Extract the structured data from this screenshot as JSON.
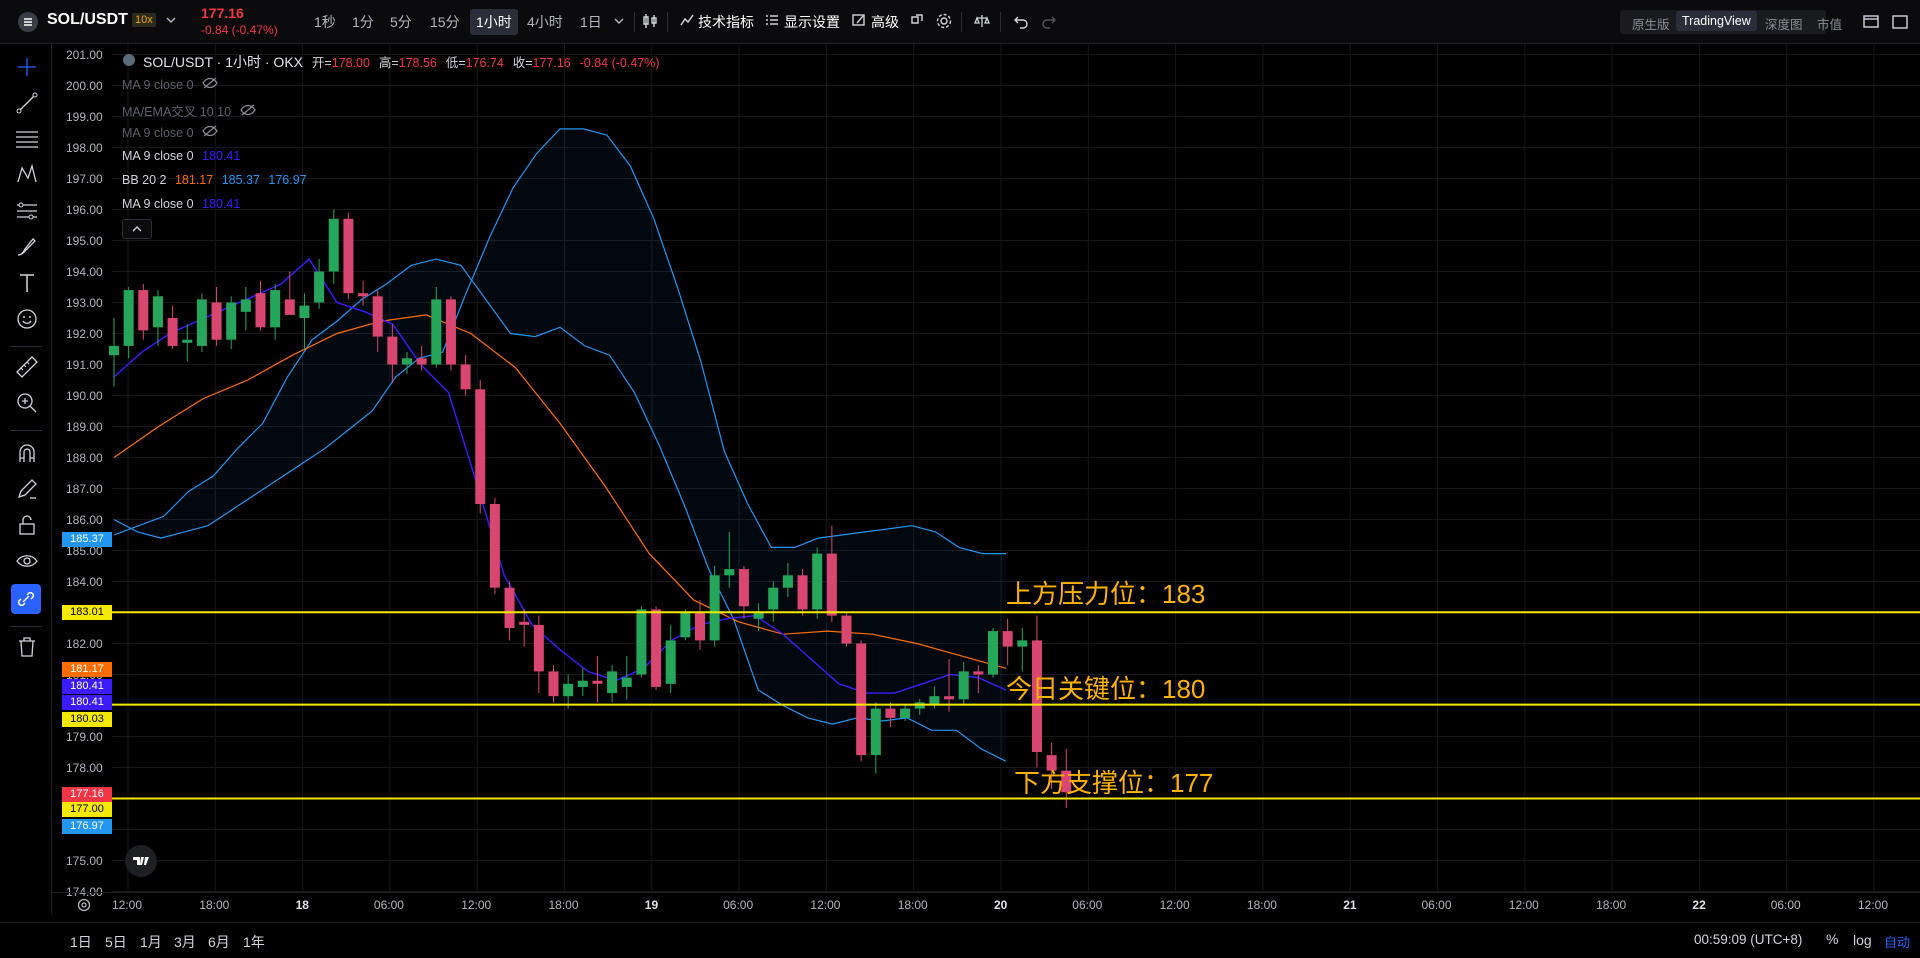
{
  "header": {
    "symbol": "SOL/USDT",
    "leverage": "10x",
    "last_price": "177.16",
    "change": "-0.84 (-0.47%)",
    "intervals": [
      "1秒",
      "1分",
      "5分",
      "15分",
      "1小时",
      "4小时",
      "1日"
    ],
    "active_interval": "1小时",
    "indicators_label": "技术指标",
    "display_label": "显示设置",
    "advanced_label": "高级",
    "view_modes": [
      "原生版",
      "TradingView",
      "深度图",
      "市值"
    ],
    "active_view": "TradingView"
  },
  "legend": {
    "title": "SOL/USDT · 1小时 · OKX",
    "open_label": "开=",
    "open": "178.00",
    "high_label": "高=",
    "high": "178.56",
    "low_label": "低=",
    "low": "176.74",
    "close_label": "收=",
    "close": "177.16",
    "change": "-0.84 (-0.47%)",
    "indicators": [
      {
        "name": "MA 9 close 0",
        "value": "",
        "hidden": true
      },
      {
        "name": "MA/EMA交叉 10 10",
        "value": "",
        "hidden": true
      },
      {
        "name": "MA 9 close 0",
        "value": "",
        "hidden": true
      },
      {
        "name": "MA 9 close 0",
        "value": "180.41",
        "hidden": false
      },
      {
        "name": "BB 20 2",
        "values": [
          "181.17",
          "185.37",
          "176.97"
        ],
        "hidden": false
      },
      {
        "name": "MA 9 close 0",
        "value": "180.41",
        "hidden": false
      }
    ]
  },
  "price_axis": {
    "labels": [
      "201.00",
      "200.00",
      "199.00",
      "198.00",
      "197.00",
      "196.00",
      "195.00",
      "194.00",
      "193.00",
      "192.00",
      "191.00",
      "190.00",
      "189.00",
      "188.00",
      "187.00",
      "186.00",
      "185.00",
      "184.00",
      "183.00",
      "182.00",
      "181.00",
      "180.00",
      "179.00",
      "178.00",
      "177.00",
      "176.00",
      "175.00",
      "174.00"
    ],
    "tags": [
      {
        "text": "185.37",
        "price": 185.37,
        "color": "#2196f3"
      },
      {
        "text": "183.01",
        "price": 183.01,
        "color": "#f5e900"
      },
      {
        "text": "181.17",
        "price": 181.17,
        "color": "#ff6d00"
      },
      {
        "text": "180.41",
        "price": 180.64,
        "color": "#3c1cff"
      },
      {
        "text": "180.41",
        "price": 180.1,
        "color": "#3c1cff"
      },
      {
        "text": "180.03",
        "price": 179.55,
        "color": "#f5e900"
      },
      {
        "text": "177.16",
        "price": 177.16,
        "color": "#f23645"
      },
      {
        "text": "177.00",
        "price": 176.65,
        "color": "#f5e900"
      },
      {
        "text": "176.97",
        "price": 176.1,
        "color": "#2196f3"
      }
    ]
  },
  "time_axis": {
    "labels": [
      "12:00",
      "18:00",
      "18",
      "06:00",
      "12:00",
      "18:00",
      "19",
      "06:00",
      "12:00",
      "18:00",
      "20",
      "06:00",
      "12:00",
      "18:00",
      "21",
      "06:00",
      "12:00",
      "18:00",
      "22",
      "06:00",
      "12:00"
    ]
  },
  "annotations": [
    {
      "text": "上方压力位：183",
      "price": 183.01
    },
    {
      "text": "今日关键位：180",
      "price": 180.03
    },
    {
      "text": "下方支撑位：177",
      "price": 177.0
    }
  ],
  "footer": {
    "ranges": [
      "1日",
      "5日",
      "1月",
      "3月",
      "6月",
      "1年"
    ],
    "clock": "00:59:09 (UTC+8)",
    "percent": "%",
    "log": "log",
    "auto": "自动"
  },
  "chart_data": {
    "type": "candlestick",
    "interval": "1小时",
    "candles_ohlc": [
      [
        191.3,
        192.5,
        190.3,
        191.6
      ],
      [
        191.6,
        193.5,
        191.2,
        193.4
      ],
      [
        193.4,
        193.6,
        191.8,
        192.1
      ],
      [
        192.2,
        193.4,
        191.6,
        193.2
      ],
      [
        192.5,
        192.9,
        191.5,
        191.6
      ],
      [
        191.7,
        192.3,
        191.1,
        191.8
      ],
      [
        191.6,
        193.3,
        191.4,
        193.1
      ],
      [
        193.0,
        193.5,
        191.6,
        191.8
      ],
      [
        191.8,
        193.2,
        191.5,
        193.0
      ],
      [
        192.7,
        193.5,
        192.1,
        193.1
      ],
      [
        193.3,
        193.7,
        192.1,
        192.2
      ],
      [
        192.2,
        193.6,
        191.8,
        193.4
      ],
      [
        193.1,
        194.0,
        192.6,
        192.6
      ],
      [
        192.5,
        193.3,
        191.5,
        192.9
      ],
      [
        193.0,
        194.4,
        192.8,
        194.0
      ],
      [
        194.0,
        196.0,
        193.6,
        195.7
      ],
      [
        195.7,
        195.9,
        193.1,
        193.3
      ],
      [
        193.3,
        193.7,
        192.9,
        193.2
      ],
      [
        193.2,
        193.4,
        191.4,
        191.9
      ],
      [
        191.9,
        192.3,
        190.4,
        191.0
      ],
      [
        191.0,
        191.4,
        190.7,
        191.2
      ],
      [
        191.2,
        191.6,
        190.8,
        191.0
      ],
      [
        191.0,
        193.5,
        190.9,
        193.1
      ],
      [
        193.1,
        193.2,
        190.8,
        191.0
      ],
      [
        191.0,
        191.3,
        190.0,
        190.2
      ],
      [
        190.2,
        190.5,
        186.2,
        186.5
      ],
      [
        186.5,
        186.7,
        183.6,
        183.8
      ],
      [
        183.8,
        184.0,
        182.1,
        182.5
      ],
      [
        182.7,
        183.1,
        181.9,
        182.6
      ],
      [
        182.6,
        182.9,
        180.4,
        181.1
      ],
      [
        181.1,
        181.3,
        180.1,
        180.3
      ],
      [
        180.3,
        181.0,
        179.9,
        180.7
      ],
      [
        180.6,
        181.2,
        180.3,
        180.8
      ],
      [
        180.8,
        181.6,
        180.1,
        180.7
      ],
      [
        180.4,
        181.3,
        180.1,
        181.1
      ],
      [
        180.6,
        181.6,
        180.2,
        180.9
      ],
      [
        181.0,
        183.2,
        180.9,
        183.1
      ],
      [
        183.1,
        183.2,
        180.5,
        180.6
      ],
      [
        180.7,
        182.6,
        180.4,
        182.1
      ],
      [
        182.2,
        183.1,
        182.1,
        183.0
      ],
      [
        183.0,
        183.4,
        181.8,
        182.1
      ],
      [
        182.1,
        184.5,
        181.9,
        184.2
      ],
      [
        184.2,
        185.6,
        183.8,
        184.4
      ],
      [
        184.4,
        184.5,
        182.8,
        183.2
      ],
      [
        182.8,
        183.3,
        182.4,
        183.0
      ],
      [
        183.1,
        184.0,
        182.7,
        183.8
      ],
      [
        183.8,
        184.6,
        183.5,
        184.2
      ],
      [
        184.2,
        184.4,
        182.9,
        183.1
      ],
      [
        183.1,
        185.1,
        182.8,
        184.9
      ],
      [
        184.9,
        185.8,
        182.7,
        182.9
      ],
      [
        182.9,
        183.0,
        181.9,
        182.0
      ],
      [
        182.0,
        182.1,
        178.2,
        178.4
      ],
      [
        178.4,
        180.1,
        177.8,
        179.9
      ],
      [
        179.9,
        180.1,
        179.3,
        179.6
      ],
      [
        179.6,
        180.0,
        179.5,
        179.9
      ],
      [
        179.9,
        180.2,
        179.7,
        180.1
      ],
      [
        180.0,
        180.6,
        179.9,
        180.3
      ],
      [
        180.3,
        181.5,
        179.8,
        180.2
      ],
      [
        180.2,
        181.4,
        180.0,
        181.1
      ],
      [
        181.1,
        181.3,
        180.4,
        181.0
      ],
      [
        181.0,
        182.5,
        180.9,
        182.4
      ],
      [
        182.4,
        182.8,
        181.3,
        181.9
      ],
      [
        181.9,
        182.5,
        181.1,
        182.1
      ],
      [
        182.1,
        182.9,
        178.0,
        178.5
      ],
      [
        178.4,
        178.8,
        177.3,
        177.9
      ],
      [
        177.9,
        178.6,
        176.7,
        177.2
      ]
    ],
    "bb_upper": [
      185.5,
      185.8,
      186.1,
      186.9,
      187.4,
      188.3,
      189.1,
      190.6,
      191.8,
      192.4,
      193.1,
      193.6,
      194.2,
      194.4,
      194.2,
      193.1,
      192.0,
      191.9,
      192.2,
      191.6,
      191.3,
      190.1,
      188.4,
      186.5,
      184.4,
      182.8,
      180.5,
      180.0,
      179.6,
      179.4,
      179.6,
      179.5,
      179.6,
      179.2,
      179.2,
      178.6,
      178.2
    ],
    "bb_lower": [
      186.0,
      185.6,
      185.4,
      185.6,
      185.8,
      186.3,
      186.8,
      187.3,
      187.8,
      188.3,
      188.9,
      189.5,
      190.6,
      191.2,
      191.4,
      193.3,
      195.1,
      196.7,
      197.8,
      198.6,
      198.6,
      198.4,
      197.4,
      195.7,
      193.5,
      191.1,
      188.2,
      186.5,
      185.1,
      185.1,
      185.4,
      185.5,
      185.6,
      185.7,
      185.8,
      185.6,
      185.1,
      184.9,
      184.9
    ],
    "ma9": [
      190.6,
      191.4,
      192.0,
      192.4,
      192.8,
      193.2,
      193.6,
      194.4,
      193.0,
      192.7,
      192.3,
      191.0,
      190.1,
      187.2,
      184.2,
      182.6,
      181.8,
      181.1,
      180.8,
      181.2,
      182.1,
      182.6,
      182.8,
      182.9,
      182.3,
      181.5,
      180.7,
      180.4,
      180.4,
      180.7,
      181.0,
      180.9,
      180.5
    ],
    "ema": [
      188.0,
      189.0,
      189.9,
      190.5,
      191.3,
      192.0,
      192.4,
      192.6,
      192.0,
      190.9,
      189.1,
      187.1,
      184.9,
      183.4,
      182.7,
      182.3,
      182.4,
      182.3,
      182.0,
      181.6,
      181.2
    ],
    "horizontal_levels": [
      183.01,
      180.03,
      177.0
    ],
    "ylim": [
      174.0,
      201.0
    ]
  }
}
